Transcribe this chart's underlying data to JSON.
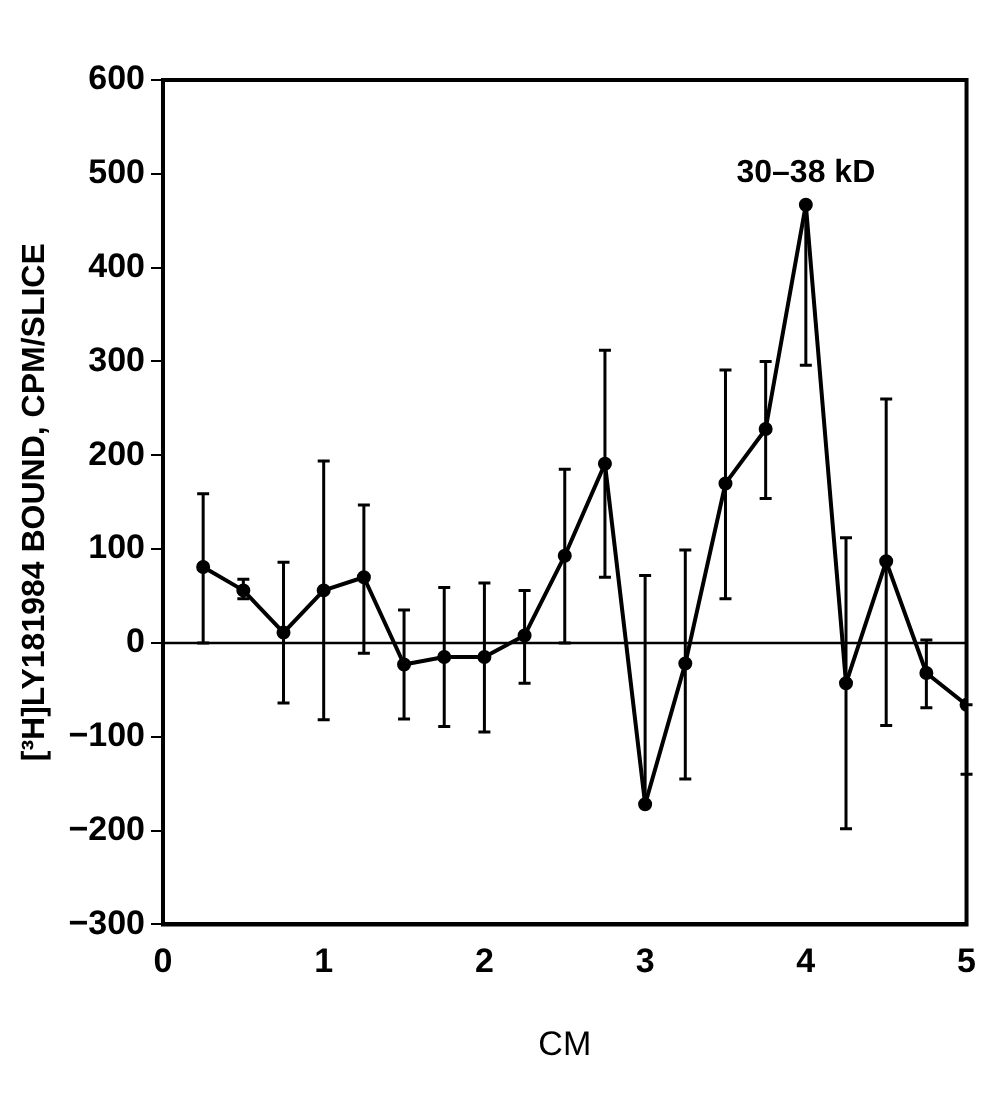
{
  "chart_data": {
    "type": "line",
    "xlabel": "CM",
    "ylabel": "[³H]LY181984 BOUND, CPM/SLICE",
    "x": [
      0.25,
      0.5,
      0.75,
      1.0,
      1.25,
      1.5,
      1.75,
      2.0,
      2.25,
      2.5,
      2.75,
      3.0,
      3.25,
      3.5,
      3.75,
      4.0,
      4.25,
      4.5,
      4.75,
      5.0
    ],
    "series": [
      {
        "color": "#000000",
        "values": [
          81,
          56,
          11,
          56,
          70,
          -23,
          -15,
          -15,
          8,
          93,
          191,
          -172,
          -22,
          170,
          228,
          467,
          -43,
          87,
          -32,
          -66
        ],
        "errors": [
          [
            0,
            159
          ],
          [
            47,
            68
          ],
          [
            -64,
            86
          ],
          [
            -82,
            194
          ],
          [
            -11,
            147
          ],
          [
            -81,
            35
          ],
          [
            -89,
            59
          ],
          [
            -95,
            64
          ],
          [
            -43,
            56
          ],
          [
            0,
            185
          ],
          [
            70,
            312
          ],
          [
            -172,
            72
          ],
          [
            -145,
            99
          ],
          [
            47,
            291
          ],
          [
            154,
            300
          ],
          [
            296,
            467
          ],
          [
            -198,
            112
          ],
          [
            -88,
            260
          ],
          [
            -69,
            3
          ],
          [
            -140,
            -66
          ]
        ]
      }
    ],
    "xlim": [
      0,
      5
    ],
    "xticks": [
      0,
      1,
      2,
      3,
      4,
      5
    ],
    "ylim": [
      -300,
      600
    ],
    "yticks": [
      -300,
      -200,
      -100,
      0,
      100,
      200,
      300,
      400,
      500,
      600
    ],
    "ref_lines": [
      {
        "axis": "y",
        "value": 0,
        "color": "#000000"
      }
    ],
    "annotations": [
      {
        "text": "30–38 kD",
        "x": 4,
        "y": 467
      }
    ],
    "marker": "circle",
    "line_style": "solid",
    "grid": false,
    "legend": false
  }
}
